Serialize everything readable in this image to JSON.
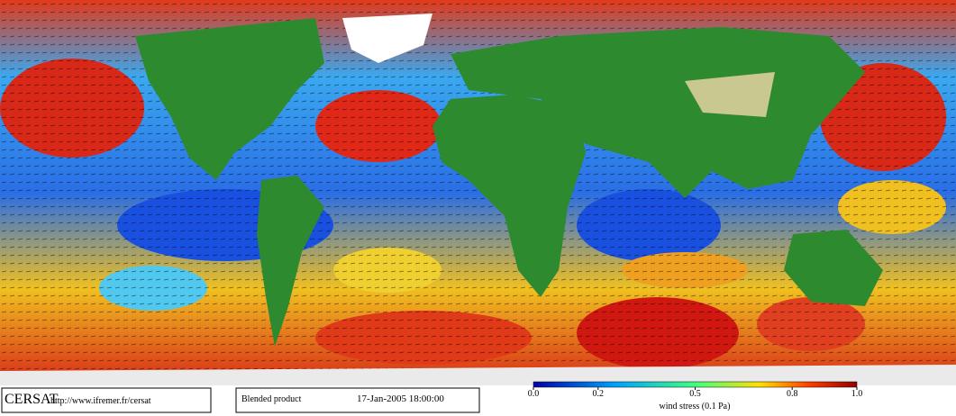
{
  "footer": {
    "logo": "CERSAT",
    "url": "http://www.ifremer.fr/cersat",
    "product": "Blended product",
    "date": "17-Jan-2005 18:00:00"
  },
  "colorbar": {
    "label": "wind stress (0.1 Pa)",
    "range": [
      0,
      1
    ],
    "ticks": [
      {
        "value": 0,
        "label": "0.0"
      },
      0.2,
      0.5,
      0.8,
      {
        "value": 1,
        "label": "1.0"
      }
    ]
  }
}
